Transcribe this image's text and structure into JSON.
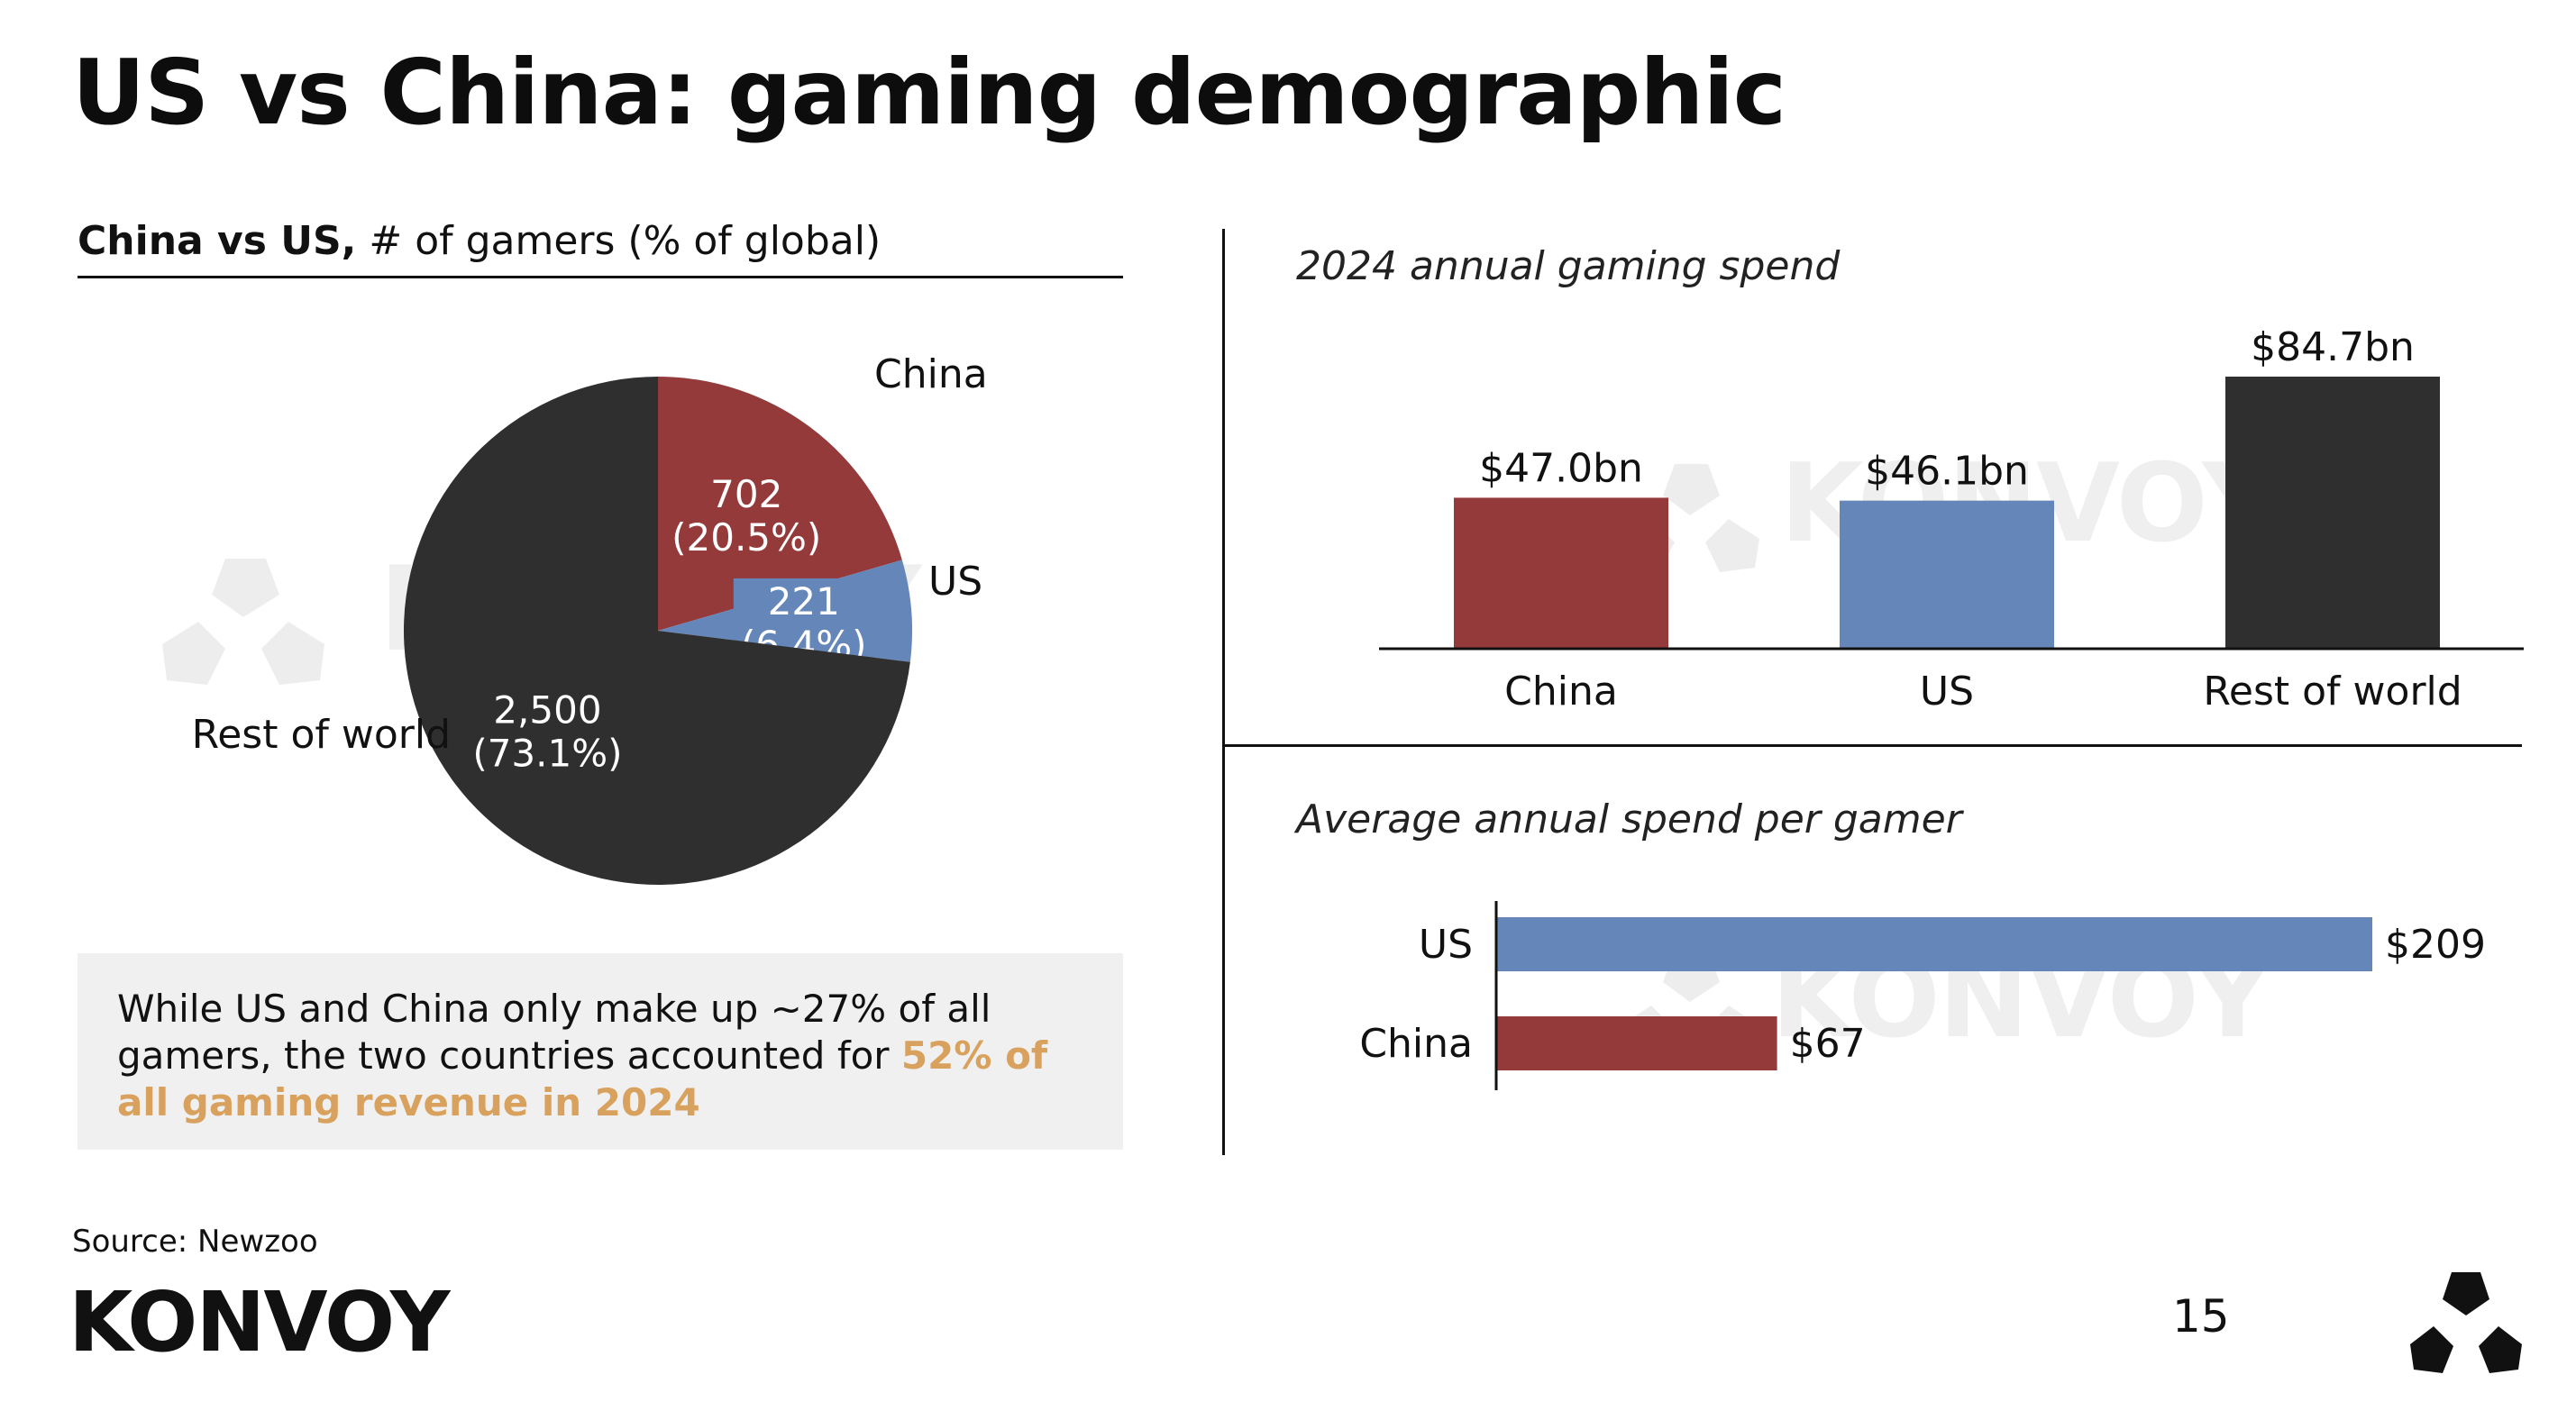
{
  "title": "US vs China: gaming demographic",
  "pie_heading": {
    "bold": "China vs US,",
    "rest": " # of gamers (% of global)"
  },
  "callout": {
    "text": "While US and China only make up ~27% of all gamers, the two countries accounted for ",
    "highlight": "52% of all gaming revenue in 2024"
  },
  "source": "Source: Newzoo",
  "logo": "KONVOY",
  "watermark": "KONVOY",
  "page_number": "15",
  "colors": {
    "china": "#943a3a",
    "us": "#6586b8",
    "rest": "#2f2f2f",
    "highlight": "#d8a25e",
    "callout_bg": "#f0f0f0"
  },
  "chart_data": [
    {
      "type": "pie",
      "title": "China vs US, # of gamers (% of global)",
      "slices": [
        {
          "name": "China",
          "value": 702,
          "percent": 20.5,
          "value_label": "702",
          "percent_label": "(20.5%)",
          "color": "#943a3a"
        },
        {
          "name": "US",
          "value": 221,
          "percent": 6.4,
          "value_label": "221",
          "percent_label": "(6.4%)",
          "color": "#6586b8"
        },
        {
          "name": "Rest of world",
          "value": 2500,
          "percent": 73.1,
          "value_label": "2,500",
          "percent_label": "(73.1%)",
          "color": "#2f2f2f"
        }
      ]
    },
    {
      "type": "bar",
      "title": "2024 annual gaming spend",
      "categories": [
        "China",
        "US",
        "Rest of world"
      ],
      "values": [
        47.0,
        46.1,
        84.7
      ],
      "data_labels": [
        "$47.0bn",
        "$46.1bn",
        "$84.7bn"
      ],
      "colors": [
        "#943a3a",
        "#6586b8",
        "#2f2f2f"
      ],
      "ylim": [
        0,
        84.7
      ],
      "grid": false
    },
    {
      "type": "bar",
      "orientation": "horizontal",
      "title": "Average annual spend per gamer",
      "categories": [
        "US",
        "China"
      ],
      "values": [
        209,
        67
      ],
      "data_labels": [
        "$209",
        "$67"
      ],
      "colors": [
        "#6586b8",
        "#943a3a"
      ],
      "xlim": [
        0,
        209
      ],
      "grid": false
    }
  ]
}
